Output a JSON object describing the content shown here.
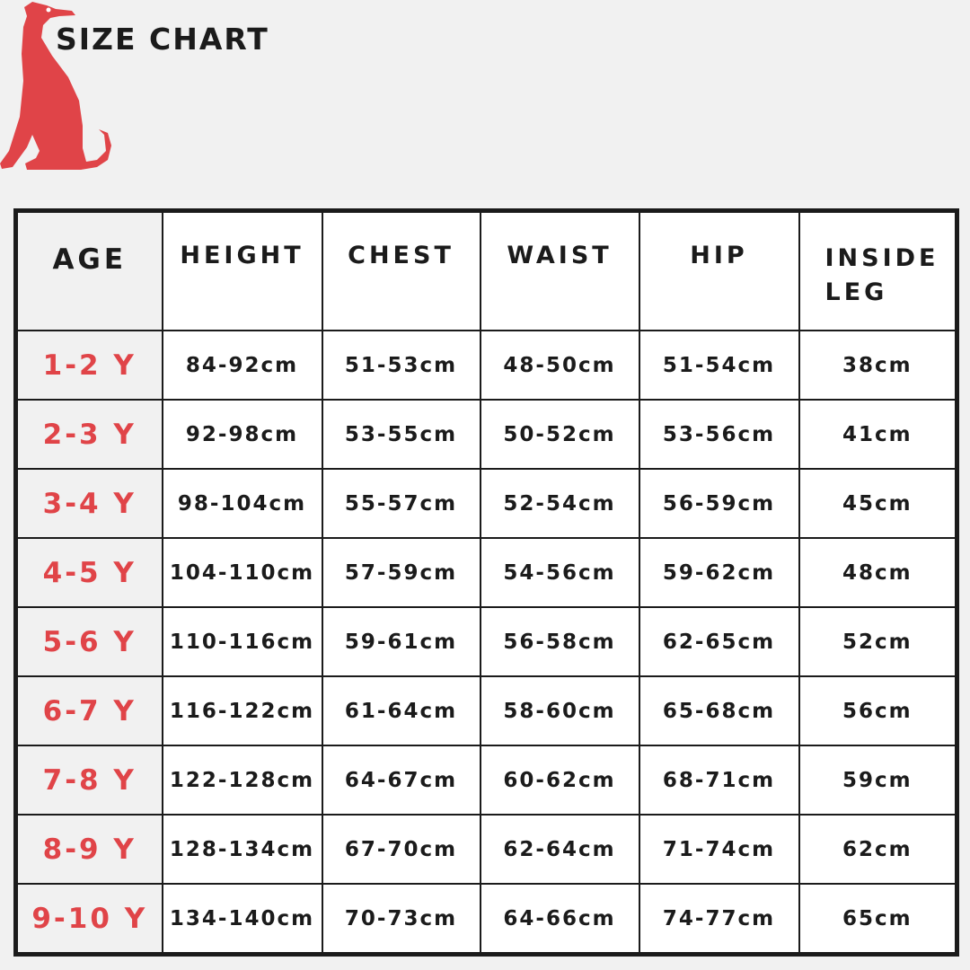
{
  "title": "SIZE CHART",
  "logo": {
    "name": "greyhound-logo",
    "color": "#e04448"
  },
  "colors": {
    "accent": "#e04448",
    "text": "#1b1b1b",
    "age_column_bg": "#f1f1f1"
  },
  "table": {
    "headers": [
      "AGE",
      "HEIGHT",
      "CHEST",
      "WAIST",
      "HIP",
      "INSIDE LEG"
    ],
    "rows": [
      [
        "1-2 Y",
        "84-92cm",
        "51-53cm",
        "48-50cm",
        "51-54cm",
        "38cm"
      ],
      [
        "2-3 Y",
        "92-98cm",
        "53-55cm",
        "50-52cm",
        "53-56cm",
        "41cm"
      ],
      [
        "3-4 Y",
        "98-104cm",
        "55-57cm",
        "52-54cm",
        "56-59cm",
        "45cm"
      ],
      [
        "4-5 Y",
        "104-110cm",
        "57-59cm",
        "54-56cm",
        "59-62cm",
        "48cm"
      ],
      [
        "5-6 Y",
        "110-116cm",
        "59-61cm",
        "56-58cm",
        "62-65cm",
        "52cm"
      ],
      [
        "6-7 Y",
        "116-122cm",
        "61-64cm",
        "58-60cm",
        "65-68cm",
        "56cm"
      ],
      [
        "7-8 Y",
        "122-128cm",
        "64-67cm",
        "60-62cm",
        "68-71cm",
        "59cm"
      ],
      [
        "8-9 Y",
        "128-134cm",
        "67-70cm",
        "62-64cm",
        "71-74cm",
        "62cm"
      ],
      [
        "9-10 Y",
        "134-140cm",
        "70-73cm",
        "64-66cm",
        "74-77cm",
        "65cm"
      ]
    ]
  }
}
